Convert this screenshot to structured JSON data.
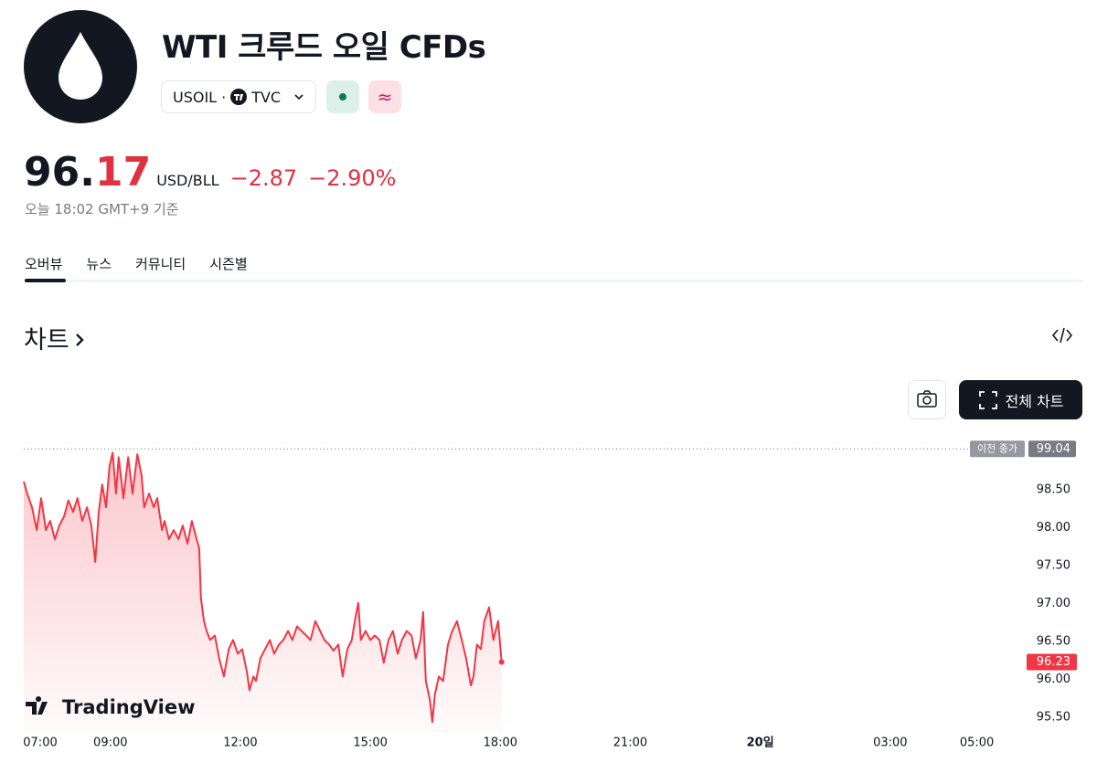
{
  "header": {
    "title": "WTI 크루드 오일 CFDs",
    "symbol": "USOIL",
    "exchange": "TVC",
    "badge": "≈"
  },
  "price": {
    "main": "96.",
    "tail": "17",
    "unit": "USD/BLL",
    "change": "−2.87",
    "change_pct": "−2.90%",
    "timestamp": "오늘 18:02 GMT+9 기준"
  },
  "tabs": [
    "오버뷰",
    "뉴스",
    "커뮤니티",
    "시즌별"
  ],
  "section": {
    "title": "차트",
    "full_chart_button": "전체 차트"
  },
  "chart_data": {
    "type": "line",
    "watermark": "TradingView",
    "color": "#f23645",
    "x": [
      7.0,
      7.08,
      7.19,
      7.3,
      7.4,
      7.51,
      7.61,
      7.72,
      7.82,
      7.93,
      8.03,
      8.14,
      8.24,
      8.35,
      8.46,
      8.56,
      8.65,
      8.73,
      8.81,
      8.9,
      8.98,
      9.05,
      9.13,
      9.19,
      9.3,
      9.41,
      9.51,
      9.62,
      9.72,
      9.78,
      9.89,
      10.0,
      10.08,
      10.19,
      10.25,
      10.35,
      10.46,
      10.57,
      10.67,
      10.78,
      10.88,
      10.99,
      11.05,
      11.09,
      11.16,
      11.22,
      11.3,
      11.41,
      11.51,
      11.62,
      11.73,
      11.83,
      11.94,
      12.04,
      12.15,
      12.21,
      12.3,
      12.36,
      12.46,
      12.57,
      12.68,
      12.78,
      12.89,
      12.99,
      13.1,
      13.2,
      13.31,
      13.41,
      13.52,
      13.62,
      13.73,
      13.84,
      13.94,
      14.05,
      14.15,
      14.26,
      14.36,
      14.47,
      14.57,
      14.64,
      14.72,
      14.78,
      14.89,
      15.0,
      15.1,
      15.21,
      15.31,
      15.42,
      15.52,
      15.63,
      15.73,
      15.84,
      15.95,
      16.05,
      16.16,
      16.22,
      16.28,
      16.37,
      16.43,
      16.49,
      16.58,
      16.68,
      16.79,
      16.89,
      17.0,
      17.11,
      17.21,
      17.32,
      17.38,
      17.46,
      17.55,
      17.63,
      17.74,
      17.84,
      17.95,
      18.03
    ],
    "values": [
      98.61,
      98.45,
      98.27,
      97.97,
      98.39,
      97.97,
      98.09,
      97.85,
      98.03,
      98.15,
      98.36,
      98.21,
      98.39,
      98.09,
      98.27,
      98.03,
      97.55,
      98.21,
      98.57,
      98.27,
      98.81,
      98.99,
      98.45,
      98.93,
      98.39,
      98.93,
      98.45,
      98.97,
      98.69,
      98.27,
      98.45,
      98.27,
      98.39,
      97.97,
      98.09,
      97.85,
      97.97,
      97.85,
      98.03,
      97.79,
      98.09,
      97.85,
      97.73,
      97.07,
      96.77,
      96.64,
      96.52,
      96.58,
      96.28,
      96.04,
      96.4,
      96.52,
      96.34,
      96.4,
      96.1,
      95.86,
      96.04,
      95.98,
      96.28,
      96.4,
      96.52,
      96.34,
      96.46,
      96.52,
      96.64,
      96.52,
      96.7,
      96.64,
      96.58,
      96.52,
      96.77,
      96.64,
      96.52,
      96.46,
      96.38,
      96.46,
      96.04,
      96.4,
      96.52,
      96.77,
      97.01,
      96.52,
      96.64,
      96.52,
      96.58,
      96.52,
      96.22,
      96.52,
      96.64,
      96.34,
      96.52,
      96.64,
      96.58,
      96.28,
      96.52,
      96.89,
      95.98,
      95.74,
      95.44,
      95.8,
      96.04,
      95.98,
      96.46,
      96.64,
      96.77,
      96.52,
      96.28,
      95.92,
      96.04,
      96.46,
      96.4,
      96.77,
      96.95,
      96.52,
      96.77,
      96.23
    ],
    "prev_close": {
      "label": "이전 종가",
      "value": 99.04
    },
    "xlim": [
      7,
      30
    ],
    "xticks": [
      {
        "value": 7,
        "label": "07:00"
      },
      {
        "value": 9,
        "label": "09:00"
      },
      {
        "value": 12,
        "label": "12:00"
      },
      {
        "value": 15,
        "label": "15:00"
      },
      {
        "value": 18,
        "label": "18:00"
      },
      {
        "value": 21,
        "label": "21:00"
      },
      {
        "value": 24,
        "label": "20일"
      },
      {
        "value": 27,
        "label": "03:00"
      },
      {
        "value": 29,
        "label": "05:00"
      }
    ],
    "ylim": [
      95.3,
      99.2
    ],
    "yticks": [
      {
        "value": 95.5,
        "label": "95.50"
      },
      {
        "value": 96,
        "label": "96.00"
      },
      {
        "value": 96.5,
        "label": "96.50"
      },
      {
        "value": 97,
        "label": "97.00"
      },
      {
        "value": 97.5,
        "label": "97.50"
      },
      {
        "value": 98,
        "label": "98.00"
      },
      {
        "value": 98.5,
        "label": "98.50"
      }
    ]
  }
}
